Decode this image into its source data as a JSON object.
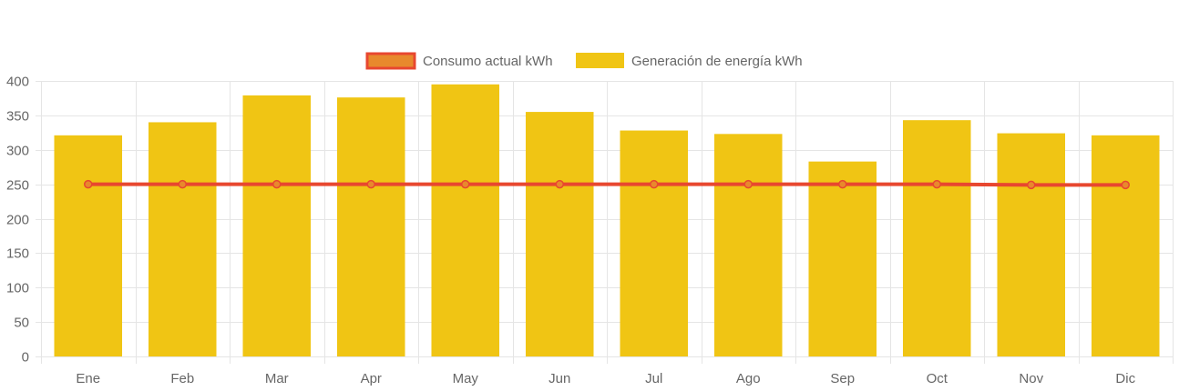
{
  "chart_data": {
    "type": "bar",
    "categories": [
      "Ene",
      "Feb",
      "Mar",
      "Apr",
      "May",
      "Jun",
      "Jul",
      "Ago",
      "Sep",
      "Oct",
      "Nov",
      "Dic"
    ],
    "series": [
      {
        "name": "Consumo actual kWh",
        "kind": "line",
        "color": "#e8472f",
        "fill": "#e8892c",
        "values": [
          250,
          250,
          250,
          250,
          250,
          250,
          250,
          250,
          250,
          250,
          249,
          249
        ]
      },
      {
        "name": "Generación de energía kWh",
        "kind": "bar",
        "color": "#f0c514",
        "values": [
          321,
          340,
          379,
          376,
          395,
          355,
          328,
          323,
          283,
          343,
          324,
          321
        ]
      }
    ],
    "yticks": [
      "0",
      "50",
      "100",
      "150",
      "200",
      "250",
      "300",
      "350",
      "400"
    ],
    "ylim": [
      0,
      400
    ],
    "title": "",
    "xlabel": "",
    "ylabel": "",
    "legend_position": "top-center",
    "grid": true
  }
}
